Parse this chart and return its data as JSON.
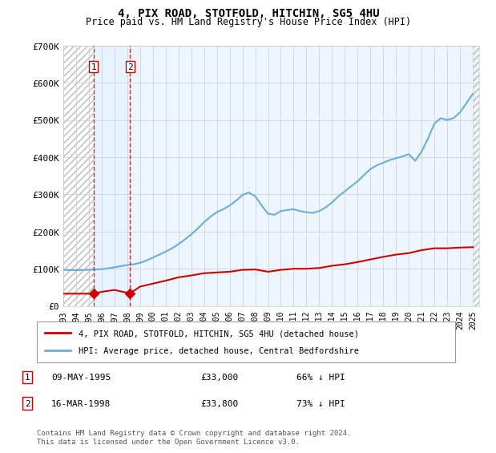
{
  "title": "4, PIX ROAD, STOTFOLD, HITCHIN, SG5 4HU",
  "subtitle": "Price paid vs. HM Land Registry's House Price Index (HPI)",
  "legend_label_red": "4, PIX ROAD, STOTFOLD, HITCHIN, SG5 4HU (detached house)",
  "legend_label_blue": "HPI: Average price, detached house, Central Bedfordshire",
  "footer": "Contains HM Land Registry data © Crown copyright and database right 2024.\nThis data is licensed under the Open Government Licence v3.0.",
  "transactions": [
    {
      "id": 1,
      "date": "09-MAY-1995",
      "price": 33000,
      "hpi_pct": "66% ↓ HPI",
      "year": 1995.36
    },
    {
      "id": 2,
      "date": "16-MAR-1998",
      "price": 33800,
      "hpi_pct": "73% ↓ HPI",
      "year": 1998.21
    }
  ],
  "ylim": [
    0,
    700000
  ],
  "yticks": [
    0,
    100000,
    200000,
    300000,
    400000,
    500000,
    600000,
    700000
  ],
  "ytick_labels": [
    "£0",
    "£100K",
    "£200K",
    "£300K",
    "£400K",
    "£500K",
    "£600K",
    "£700K"
  ],
  "xlim_start": 1993.0,
  "xlim_end": 2025.5,
  "xticks": [
    1993,
    1994,
    1995,
    1996,
    1997,
    1998,
    1999,
    2000,
    2001,
    2002,
    2003,
    2004,
    2005,
    2006,
    2007,
    2008,
    2009,
    2010,
    2011,
    2012,
    2013,
    2014,
    2015,
    2016,
    2017,
    2018,
    2019,
    2020,
    2021,
    2022,
    2023,
    2024,
    2025
  ],
  "hpi_color": "#6baed6",
  "price_color": "#cc0000",
  "hatch_color": "#cccccc",
  "shade1_color": "#ddeeff",
  "transaction1_x": 1995.36,
  "transaction2_x": 1998.21,
  "hpi_data_x": [
    1993.0,
    1993.5,
    1994.0,
    1994.5,
    1995.0,
    1995.5,
    1996.0,
    1996.5,
    1997.0,
    1997.5,
    1998.0,
    1998.5,
    1999.0,
    1999.5,
    2000.0,
    2000.5,
    2001.0,
    2001.5,
    2002.0,
    2002.5,
    2003.0,
    2003.5,
    2004.0,
    2004.5,
    2005.0,
    2005.5,
    2006.0,
    2006.5,
    2007.0,
    2007.5,
    2008.0,
    2008.5,
    2009.0,
    2009.5,
    2010.0,
    2010.5,
    2011.0,
    2011.5,
    2012.0,
    2012.5,
    2013.0,
    2013.5,
    2014.0,
    2014.5,
    2015.0,
    2015.5,
    2016.0,
    2016.5,
    2017.0,
    2017.5,
    2018.0,
    2018.5,
    2019.0,
    2019.5,
    2020.0,
    2020.5,
    2021.0,
    2021.5,
    2022.0,
    2022.5,
    2023.0,
    2023.5,
    2024.0,
    2024.5,
    2025.0
  ],
  "hpi_data_y": [
    97000,
    96000,
    96000,
    96500,
    97000,
    98000,
    99000,
    101000,
    104000,
    107000,
    110000,
    112000,
    116000,
    122000,
    130000,
    138000,
    146000,
    155000,
    166000,
    179000,
    192000,
    208000,
    225000,
    240000,
    252000,
    260000,
    270000,
    283000,
    298000,
    305000,
    295000,
    270000,
    248000,
    245000,
    255000,
    258000,
    260000,
    255000,
    252000,
    250000,
    255000,
    265000,
    278000,
    295000,
    308000,
    322000,
    335000,
    352000,
    368000,
    378000,
    385000,
    392000,
    397000,
    402000,
    408000,
    390000,
    415000,
    450000,
    490000,
    505000,
    500000,
    505000,
    520000,
    545000,
    570000
  ],
  "price_data_x": [
    1993.0,
    1994.0,
    1995.36,
    1996.0,
    1997.0,
    1998.21,
    1999.0,
    2000.0,
    2001.0,
    2002.0,
    2003.0,
    2004.0,
    2005.0,
    2006.0,
    2007.0,
    2008.0,
    2009.0,
    2010.0,
    2011.0,
    2012.0,
    2013.0,
    2014.0,
    2015.0,
    2016.0,
    2017.0,
    2018.0,
    2019.0,
    2020.0,
    2021.0,
    2022.0,
    2023.0,
    2024.0,
    2025.0
  ],
  "price_data_y": [
    33000,
    33000,
    33000,
    38000,
    43000,
    33800,
    52000,
    60000,
    68000,
    77000,
    82000,
    88000,
    90000,
    92000,
    97000,
    98000,
    92000,
    97000,
    100000,
    100000,
    102000,
    108000,
    112000,
    118000,
    125000,
    132000,
    138000,
    142000,
    150000,
    155000,
    155000,
    157000,
    158000
  ]
}
